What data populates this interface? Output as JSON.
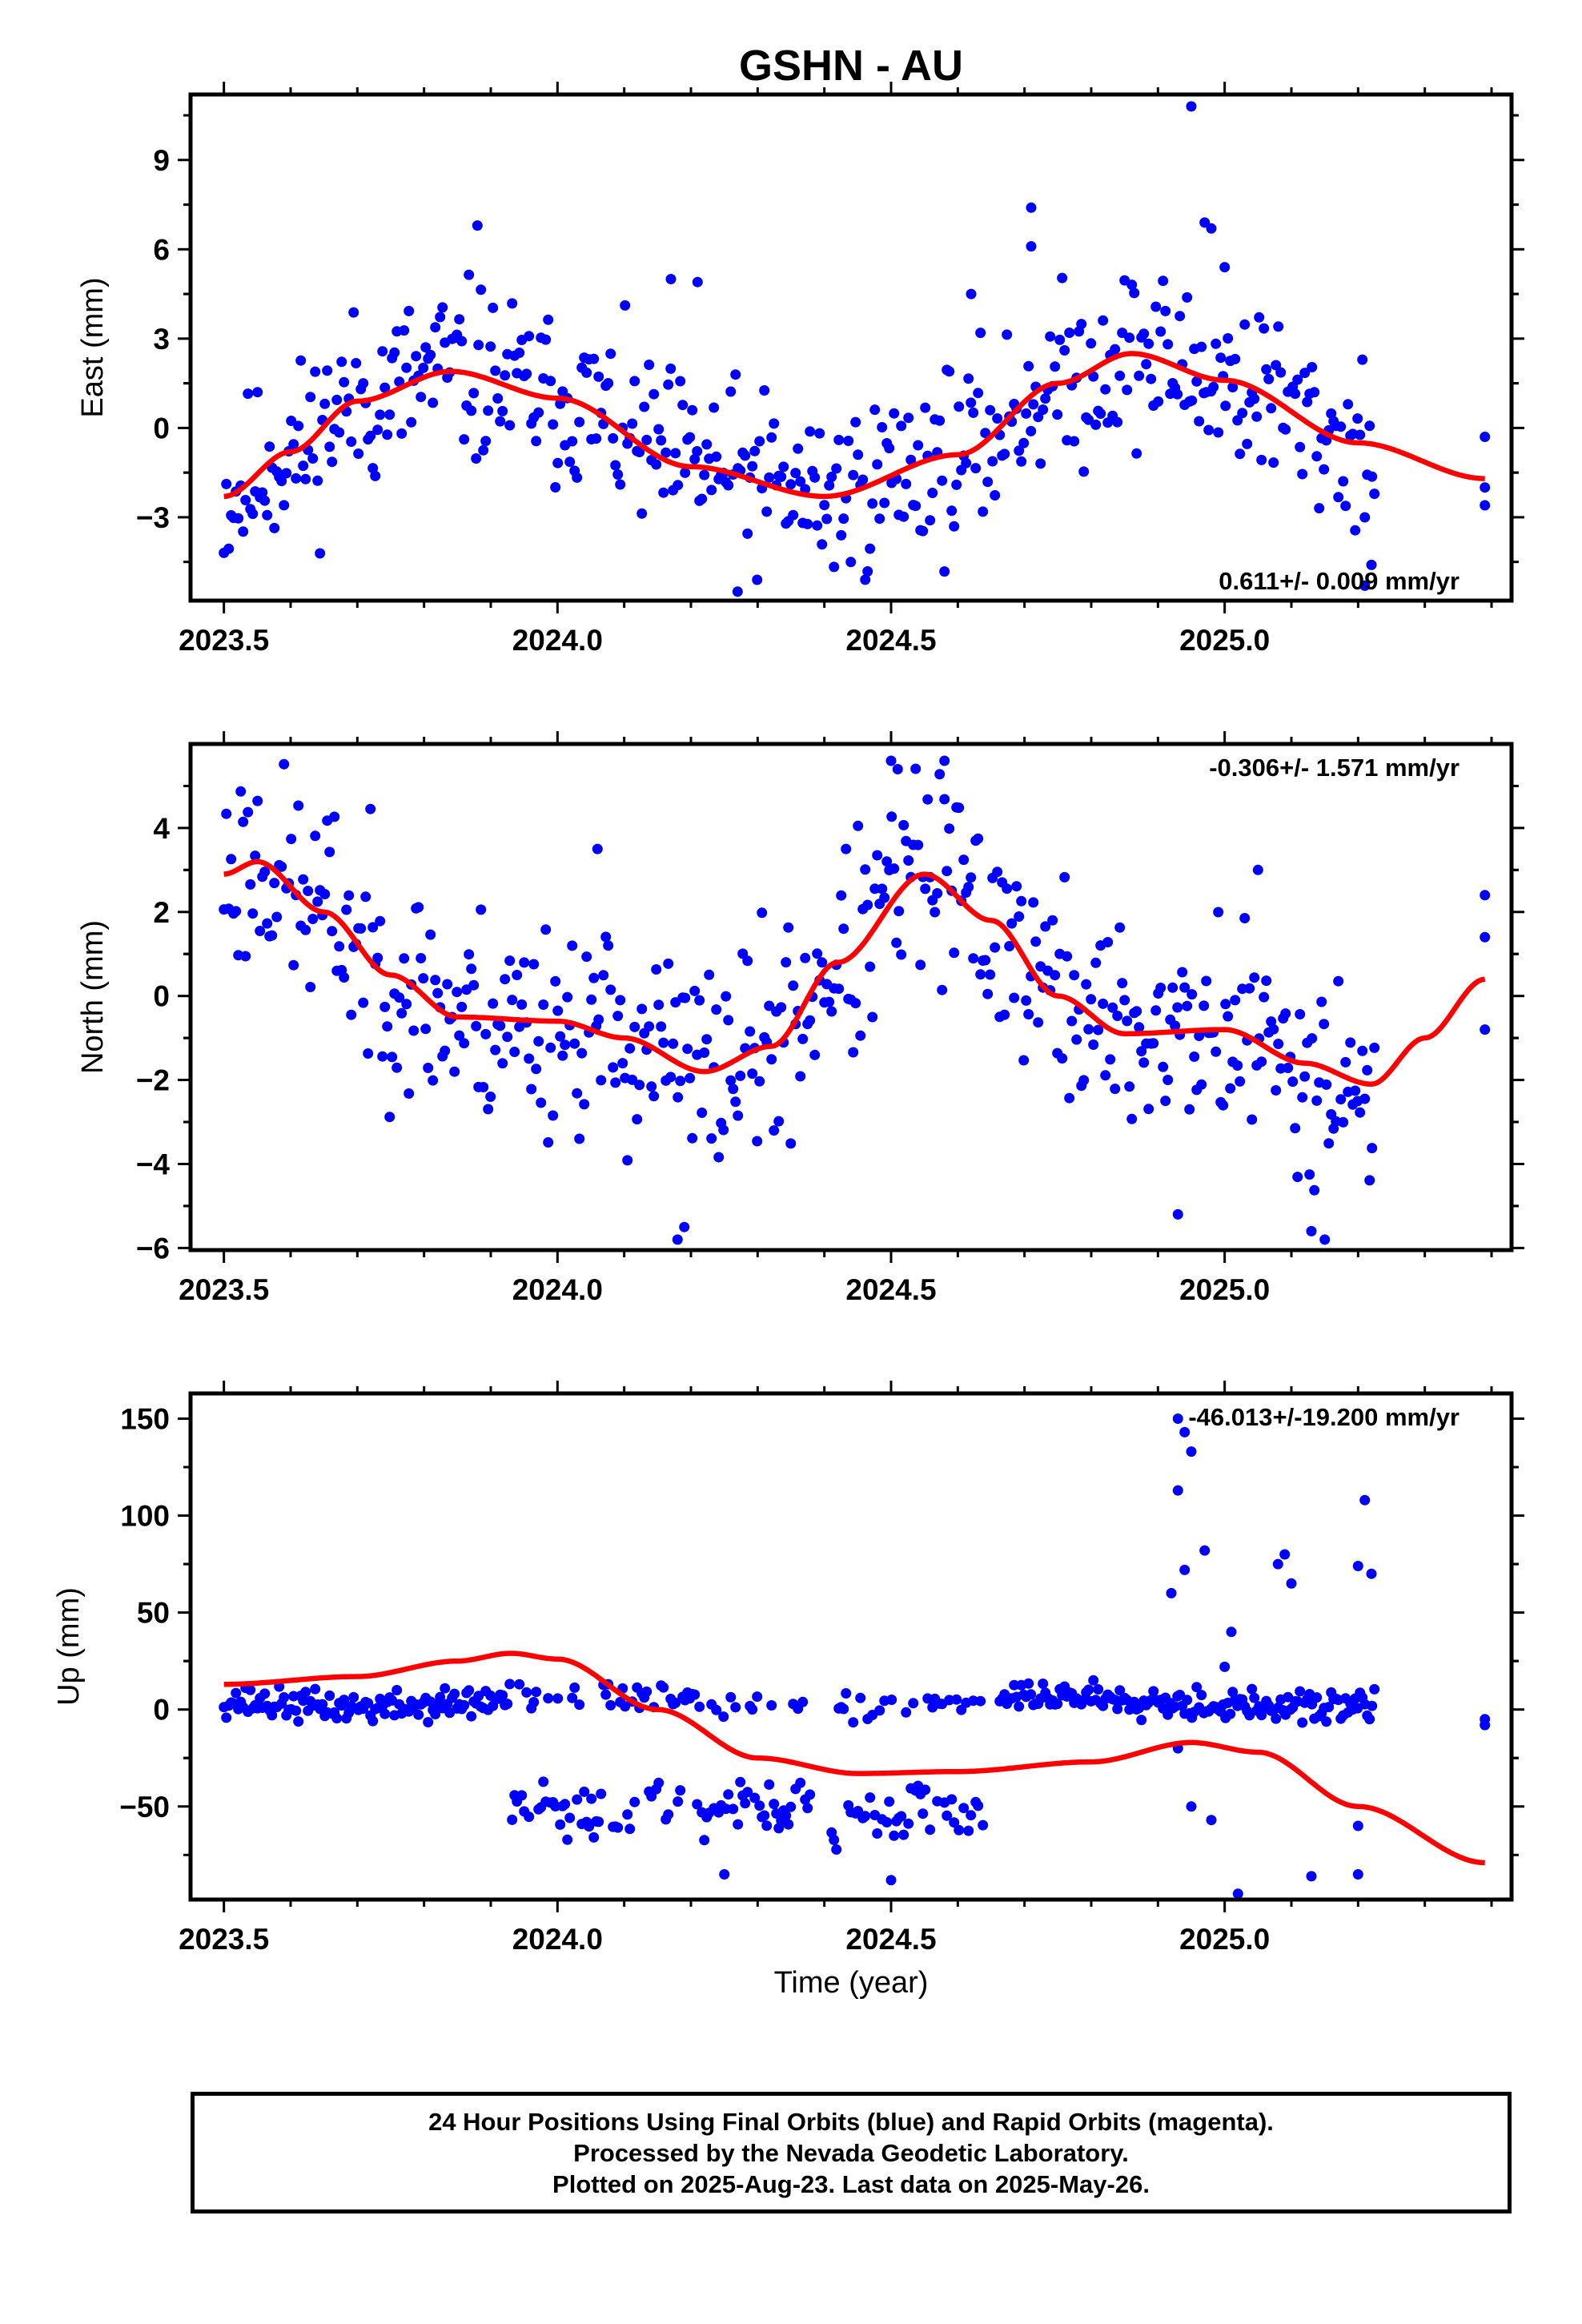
{
  "title": "GSHN - AU",
  "xlabel": "Time (year)",
  "colors": {
    "points": "#0000ff",
    "fit": "#ff0000",
    "frame": "#000000"
  },
  "caption": [
    "24 Hour Positions Using Final Orbits (blue) and Rapid Orbits (magenta).",
    "Processed by the Nevada Geodetic Laboratory.",
    "Plotted on 2025-Aug-23. Last data on 2025-May-26."
  ],
  "chart_data": [
    {
      "type": "scatter",
      "ylabel": "East (mm)",
      "xlim": [
        2023.45,
        2025.43
      ],
      "ylim": [
        -5.8,
        11.2
      ],
      "xticks": [
        2023.5,
        2024.0,
        2024.5,
        2025.0
      ],
      "xtick_labels": [
        "2023.5",
        "2024.0",
        "2024.5",
        "2025.0"
      ],
      "yticks": [
        -3,
        0,
        3,
        6,
        9
      ],
      "ytick_labels": [
        "−3",
        "0",
        "3",
        "6",
        "9"
      ],
      "rate_label": "0.611+/- 0.009 mm/yr",
      "rate_position": "bottom-right",
      "fit": {
        "x": [
          2023.5,
          2023.6,
          2023.7,
          2023.84,
          2024.0,
          2024.2,
          2024.4,
          2024.6,
          2024.75,
          2024.86,
          2025.0,
          2025.2,
          2025.39
        ],
        "y": [
          -2.3,
          -0.8,
          0.9,
          1.9,
          1.0,
          -1.3,
          -2.3,
          -0.9,
          1.5,
          2.5,
          1.6,
          -0.5,
          -1.7
        ]
      },
      "points": {
        "seed": 11,
        "amp": 1.5,
        "outliers": [
          [
            2024.95,
            10.8
          ],
          [
            2024.71,
            7.4
          ],
          [
            2024.71,
            6.1
          ],
          [
            2024.97,
            6.9
          ],
          [
            2024.98,
            6.7
          ],
          [
            2023.88,
            6.8
          ],
          [
            2024.27,
            -5.5
          ],
          [
            2024.17,
            5.0
          ],
          [
            2024.21,
            4.9
          ],
          [
            2024.62,
            4.5
          ],
          [
            2025.22,
            -4.6
          ],
          [
            2025.21,
            -5.3
          ],
          [
            2025.0,
            5.4
          ],
          [
            2025.39,
            -0.3
          ],
          [
            2025.39,
            -2.0
          ],
          [
            2025.39,
            -2.6
          ]
        ]
      }
    },
    {
      "type": "scatter",
      "ylabel": "North (mm)",
      "xlim": [
        2023.45,
        2025.43
      ],
      "ylim": [
        -6.05,
        6.0
      ],
      "xticks": [
        2023.5,
        2024.0,
        2024.5,
        2025.0
      ],
      "xtick_labels": [
        "2023.5",
        "2024.0",
        "2024.5",
        "2025.0"
      ],
      "yticks": [
        -6,
        -4,
        -2,
        0,
        2,
        4
      ],
      "ytick_labels": [
        "−6",
        "−4",
        "−2",
        "0",
        "2",
        "4"
      ],
      "rate_label": "-0.306+/- 1.571 mm/yr",
      "rate_position": "top-right",
      "fit": {
        "x": [
          2023.5,
          2023.55,
          2023.65,
          2023.75,
          2023.85,
          2024.0,
          2024.1,
          2024.22,
          2024.32,
          2024.42,
          2024.55,
          2024.65,
          2024.75,
          2024.85,
          2025.0,
          2025.12,
          2025.22,
          2025.3,
          2025.39
        ],
        "y": [
          2.9,
          3.2,
          2.0,
          0.5,
          -0.5,
          -0.6,
          -1.0,
          -1.8,
          -1.2,
          0.8,
          2.9,
          1.8,
          0.0,
          -0.9,
          -0.8,
          -1.6,
          -2.1,
          -1.0,
          0.4
        ]
      },
      "points": {
        "seed": 23,
        "amp": 1.3,
        "outliers": [
          [
            2024.18,
            -5.8
          ],
          [
            2024.19,
            -5.5
          ],
          [
            2024.5,
            5.6
          ],
          [
            2024.58,
            5.6
          ],
          [
            2024.51,
            5.4
          ],
          [
            2025.13,
            -5.6
          ],
          [
            2025.15,
            -5.8
          ],
          [
            2025.39,
            2.4
          ],
          [
            2025.39,
            1.4
          ],
          [
            2025.39,
            -0.8
          ],
          [
            2024.06,
            3.5
          ],
          [
            2024.93,
            -5.2
          ],
          [
            2025.05,
            3.0
          ]
        ]
      }
    },
    {
      "type": "scatter",
      "ylabel": "Up (mm)",
      "xlim": [
        2023.45,
        2025.43
      ],
      "ylim": [
        -98,
        163
      ],
      "xticks": [
        2023.5,
        2024.0,
        2024.5,
        2025.0
      ],
      "xtick_labels": [
        "2023.5",
        "2024.0",
        "2024.5",
        "2025.0"
      ],
      "yticks": [
        -50,
        0,
        50,
        100,
        150
      ],
      "ytick_labels": [
        "−50",
        "0",
        "50",
        "100",
        "150"
      ],
      "rate_label": "-46.013+/-19.200 mm/yr",
      "rate_position": "top-right",
      "fit": {
        "x": [
          2023.5,
          2023.7,
          2023.85,
          2023.93,
          2024.0,
          2024.15,
          2024.3,
          2024.45,
          2024.6,
          2024.8,
          2024.95,
          2025.05,
          2025.2,
          2025.39
        ],
        "y": [
          13,
          17,
          25,
          29,
          26,
          0,
          -25,
          -33,
          -32,
          -27,
          -17,
          -22,
          -50,
          -79
        ]
      },
      "points": {
        "seed": 37,
        "amp": 4,
        "outliers": [
          [
            2024.93,
            150
          ],
          [
            2024.94,
            143
          ],
          [
            2024.95,
            133
          ],
          [
            2024.97,
            82
          ],
          [
            2024.93,
            113
          ],
          [
            2024.92,
            60
          ],
          [
            2024.94,
            72
          ],
          [
            2025.21,
            108
          ],
          [
            2025.2,
            74
          ],
          [
            2025.22,
            70
          ],
          [
            2025.09,
            80
          ],
          [
            2025.1,
            65
          ],
          [
            2025.08,
            75
          ],
          [
            2025.01,
            40
          ],
          [
            2024.95,
            -50
          ],
          [
            2024.98,
            -57
          ],
          [
            2025.02,
            -95
          ],
          [
            2025.13,
            -86
          ],
          [
            2025.2,
            -85
          ],
          [
            2025.2,
            -60
          ],
          [
            2025.39,
            -5
          ],
          [
            2025.39,
            -8
          ],
          [
            2024.5,
            -88
          ],
          [
            2024.25,
            -85
          ],
          [
            2024.93,
            -20
          ],
          [
            2025.0,
            22
          ]
        ]
      }
    }
  ]
}
